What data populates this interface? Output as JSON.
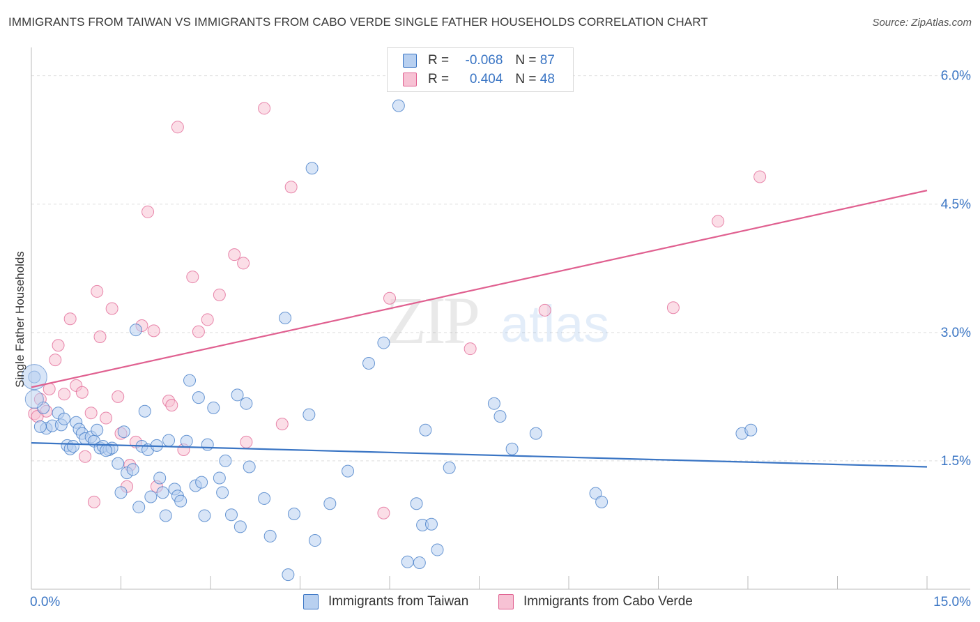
{
  "title": "IMMIGRANTS FROM TAIWAN VS IMMIGRANTS FROM CABO VERDE SINGLE FATHER HOUSEHOLDS CORRELATION CHART",
  "source": "Source: ZipAtlas.com",
  "watermark": {
    "zip": "ZIP",
    "atlas": "atlas"
  },
  "colors": {
    "taiwan": "#3a75c4",
    "taiwan_fill": "#b8d0f0",
    "cabo": "#e06090",
    "cabo_fill": "#f7c2d4",
    "axis_text": "#3a75c4",
    "grid": "#dddddd"
  },
  "legend": {
    "rows": [
      {
        "r_label": "R =",
        "r_value": "-0.068",
        "n_label": "N =",
        "n_value": "87"
      },
      {
        "r_label": "R =",
        "r_value": "0.404",
        "n_label": "N =",
        "n_value": "48"
      }
    ]
  },
  "chart_data": {
    "type": "scatter",
    "title": "IMMIGRANTS FROM TAIWAN VS IMMIGRANTS FROM CABO VERDE SINGLE FATHER HOUSEHOLDS CORRELATION CHART",
    "xlabel": "",
    "ylabel": "Single Father Households",
    "xlim": [
      0,
      15
    ],
    "ylim": [
      0,
      6.25
    ],
    "x_tick_labels": [
      "0.0%",
      "15.0%"
    ],
    "y_ticks": [
      1.5,
      3.0,
      4.5,
      6.0
    ],
    "y_tick_labels": [
      "1.5%",
      "3.0%",
      "4.5%",
      "6.0%"
    ],
    "grid": true,
    "series": [
      {
        "name": "Immigrants from Taiwan",
        "trend": {
          "x": [
            0,
            15
          ],
          "y": [
            1.71,
            1.43
          ]
        },
        "points": [
          [
            0.05,
            2.48
          ],
          [
            0.2,
            2.12
          ],
          [
            0.25,
            1.88
          ],
          [
            0.35,
            1.91
          ],
          [
            0.45,
            2.06
          ],
          [
            0.5,
            1.92
          ],
          [
            0.55,
            1.99
          ],
          [
            0.6,
            1.68
          ],
          [
            0.65,
            1.64
          ],
          [
            0.75,
            1.95
          ],
          [
            0.8,
            1.87
          ],
          [
            0.85,
            1.82
          ],
          [
            0.9,
            1.76
          ],
          [
            1.0,
            1.78
          ],
          [
            1.05,
            1.73
          ],
          [
            1.1,
            1.86
          ],
          [
            1.15,
            1.65
          ],
          [
            1.2,
            1.67
          ],
          [
            1.3,
            1.63
          ],
          [
            1.35,
            1.65
          ],
          [
            1.45,
            1.47
          ],
          [
            1.5,
            1.13
          ],
          [
            1.55,
            1.84
          ],
          [
            1.6,
            1.36
          ],
          [
            1.7,
            1.4
          ],
          [
            1.75,
            3.03
          ],
          [
            1.8,
            0.96
          ],
          [
            1.85,
            1.67
          ],
          [
            1.9,
            2.08
          ],
          [
            1.95,
            1.63
          ],
          [
            2.0,
            1.08
          ],
          [
            2.1,
            1.68
          ],
          [
            2.15,
            1.3
          ],
          [
            2.2,
            1.13
          ],
          [
            2.25,
            0.86
          ],
          [
            2.3,
            1.74
          ],
          [
            2.4,
            1.17
          ],
          [
            2.45,
            1.09
          ],
          [
            2.5,
            1.03
          ],
          [
            2.6,
            1.73
          ],
          [
            2.65,
            2.44
          ],
          [
            2.75,
            1.21
          ],
          [
            2.8,
            2.24
          ],
          [
            2.85,
            1.25
          ],
          [
            2.9,
            0.86
          ],
          [
            2.95,
            1.69
          ],
          [
            3.05,
            2.12
          ],
          [
            3.15,
            1.3
          ],
          [
            3.2,
            1.13
          ],
          [
            3.25,
            1.5
          ],
          [
            3.35,
            0.87
          ],
          [
            3.45,
            2.27
          ],
          [
            3.5,
            0.73
          ],
          [
            3.6,
            2.17
          ],
          [
            3.65,
            1.43
          ],
          [
            3.9,
            1.06
          ],
          [
            4.0,
            0.62
          ],
          [
            4.25,
            3.17
          ],
          [
            4.3,
            0.17
          ],
          [
            4.4,
            0.88
          ],
          [
            4.65,
            2.04
          ],
          [
            4.7,
            4.92
          ],
          [
            4.75,
            0.57
          ],
          [
            5.0,
            1.0
          ],
          [
            5.3,
            1.38
          ],
          [
            5.65,
            2.64
          ],
          [
            5.9,
            2.88
          ],
          [
            6.3,
            0.32
          ],
          [
            6.45,
            1.0
          ],
          [
            6.5,
            0.31
          ],
          [
            6.55,
            0.75
          ],
          [
            6.6,
            1.86
          ],
          [
            6.7,
            0.76
          ],
          [
            6.8,
            0.46
          ],
          [
            7.0,
            1.42
          ],
          [
            7.75,
            2.17
          ],
          [
            7.85,
            2.02
          ],
          [
            8.05,
            1.64
          ],
          [
            8.45,
            1.82
          ],
          [
            9.45,
            1.12
          ],
          [
            9.55,
            1.02
          ],
          [
            11.9,
            1.82
          ],
          [
            12.05,
            1.86
          ],
          [
            6.15,
            5.65
          ],
          [
            0.15,
            1.9
          ],
          [
            1.25,
            1.62
          ],
          [
            0.7,
            1.67
          ]
        ]
      },
      {
        "name": "Immigrants from Cabo Verde",
        "trend": {
          "x": [
            0,
            15
          ],
          "y": [
            2.36,
            4.66
          ]
        },
        "points": [
          [
            0.05,
            2.05
          ],
          [
            0.15,
            2.22
          ],
          [
            0.25,
            2.08
          ],
          [
            0.3,
            2.34
          ],
          [
            0.4,
            2.68
          ],
          [
            0.45,
            2.85
          ],
          [
            0.55,
            2.28
          ],
          [
            0.65,
            3.16
          ],
          [
            0.75,
            2.38
          ],
          [
            0.85,
            2.3
          ],
          [
            0.9,
            1.55
          ],
          [
            1.0,
            2.06
          ],
          [
            1.05,
            1.02
          ],
          [
            1.1,
            3.48
          ],
          [
            1.15,
            2.95
          ],
          [
            1.25,
            2.0
          ],
          [
            1.35,
            3.28
          ],
          [
            1.45,
            2.25
          ],
          [
            1.5,
            1.82
          ],
          [
            1.6,
            1.2
          ],
          [
            1.65,
            1.45
          ],
          [
            1.75,
            1.72
          ],
          [
            1.85,
            3.08
          ],
          [
            1.95,
            4.41
          ],
          [
            2.05,
            3.02
          ],
          [
            2.1,
            1.2
          ],
          [
            2.3,
            2.2
          ],
          [
            2.35,
            2.15
          ],
          [
            2.45,
            5.4
          ],
          [
            2.55,
            1.63
          ],
          [
            2.7,
            3.65
          ],
          [
            2.8,
            3.01
          ],
          [
            2.95,
            3.15
          ],
          [
            3.15,
            3.44
          ],
          [
            3.4,
            3.91
          ],
          [
            3.55,
            3.81
          ],
          [
            3.6,
            1.72
          ],
          [
            3.9,
            5.62
          ],
          [
            4.2,
            1.93
          ],
          [
            4.35,
            4.7
          ],
          [
            5.9,
            0.89
          ],
          [
            6.0,
            3.4
          ],
          [
            7.35,
            2.81
          ],
          [
            8.6,
            3.26
          ],
          [
            10.75,
            3.29
          ],
          [
            11.5,
            4.3
          ],
          [
            12.2,
            4.82
          ],
          [
            0.1,
            2.02
          ]
        ]
      }
    ]
  },
  "bottom_legend": {
    "taiwan_label": "Immigrants from Taiwan",
    "cabo_label": "Immigrants from Cabo Verde"
  }
}
